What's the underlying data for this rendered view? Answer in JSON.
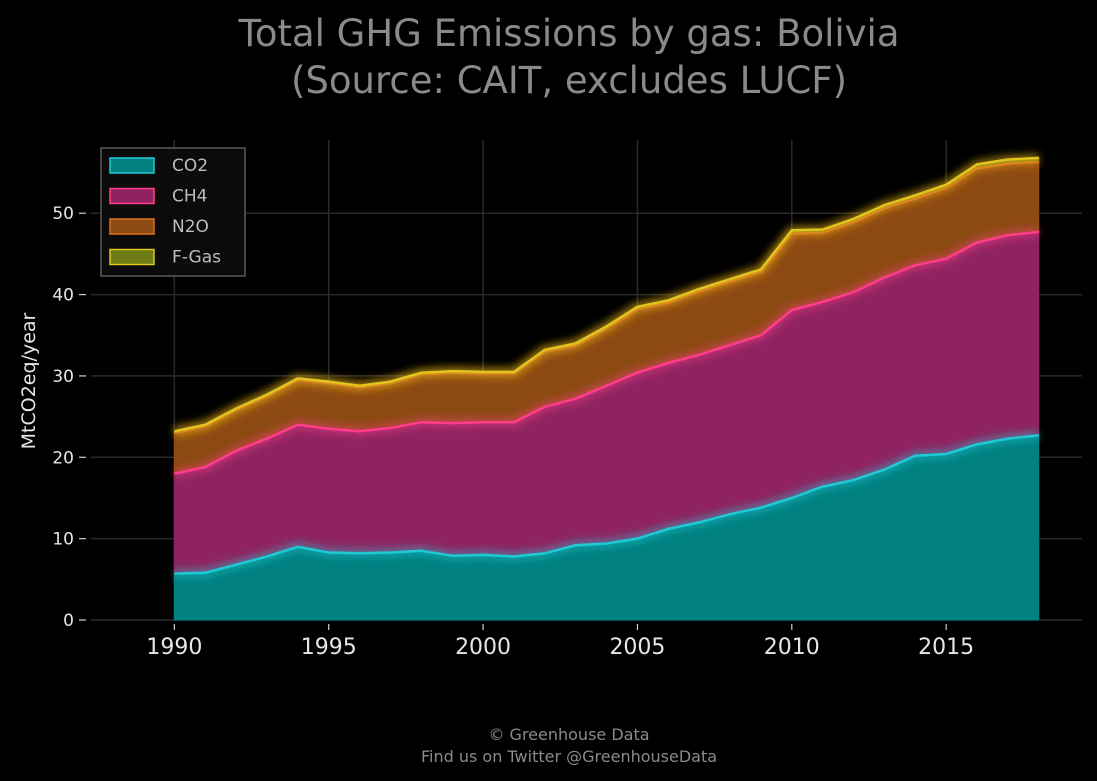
{
  "chart_data": {
    "type": "area",
    "stacked": true,
    "title_line1": "Total GHG Emissions by gas: Bolivia",
    "title_line2": "(Source: CAIT, excludes LUCF)",
    "xlabel": "",
    "ylabel": "MtCO2eq/year",
    "xlim": [
      1987.3,
      2019.4
    ],
    "ylim": [
      0,
      59
    ],
    "x_ticks": [
      1990,
      1995,
      2000,
      2005,
      2010,
      2015
    ],
    "y_ticks": [
      0,
      10,
      20,
      30,
      40,
      50
    ],
    "grid": true,
    "legend_position": "top-left",
    "x": [
      1990,
      1991,
      1992,
      1993,
      1994,
      1995,
      1996,
      1997,
      1998,
      1999,
      2000,
      2001,
      2002,
      2003,
      2004,
      2005,
      2006,
      2007,
      2008,
      2009,
      2010,
      2011,
      2012,
      2013,
      2014,
      2015,
      2016,
      2017,
      2018
    ],
    "series": [
      {
        "name": "CO2",
        "fill": "#008080",
        "line": "#1fc9d6",
        "values": [
          5.7,
          5.8,
          6.8,
          7.8,
          9.0,
          8.3,
          8.2,
          8.3,
          8.5,
          7.9,
          8.0,
          7.8,
          8.2,
          9.2,
          9.4,
          10.0,
          11.2,
          12.0,
          13.0,
          13.8,
          15.0,
          16.4,
          17.2,
          18.5,
          20.2,
          20.4,
          21.6,
          22.3,
          22.7
        ]
      },
      {
        "name": "CH4",
        "fill": "#8f2360",
        "line": "#ff3d8a",
        "values": [
          12.3,
          13.0,
          14.0,
          14.5,
          15.0,
          15.2,
          15.0,
          15.3,
          15.8,
          16.3,
          16.3,
          16.5,
          18.0,
          18.0,
          19.4,
          20.4,
          20.4,
          20.6,
          20.8,
          21.2,
          23.1,
          22.7,
          23.1,
          23.6,
          23.4,
          24.0,
          24.8,
          25.0,
          25.0
        ]
      },
      {
        "name": "N2O",
        "fill": "#8c4a12",
        "line": "#d9701a",
        "values": [
          5.0,
          5.0,
          5.0,
          5.2,
          5.5,
          5.6,
          5.4,
          5.5,
          5.9,
          6.2,
          6.0,
          6.0,
          6.8,
          6.5,
          7.0,
          7.8,
          7.4,
          7.8,
          7.8,
          7.8,
          9.4,
          8.5,
          8.6,
          8.5,
          8.2,
          8.7,
          9.1,
          8.8,
          8.6
        ]
      },
      {
        "name": "F-Gas",
        "fill": "#6e7d14",
        "line": "#e1c51c",
        "values": [
          0.2,
          0.2,
          0.2,
          0.2,
          0.2,
          0.2,
          0.2,
          0.2,
          0.2,
          0.2,
          0.2,
          0.2,
          0.2,
          0.3,
          0.3,
          0.3,
          0.3,
          0.3,
          0.3,
          0.3,
          0.4,
          0.4,
          0.4,
          0.4,
          0.4,
          0.4,
          0.5,
          0.5,
          0.5
        ]
      }
    ]
  },
  "footer": {
    "line1": "© Greenhouse Data",
    "line2": "Find us on Twitter @GreenhouseData"
  }
}
